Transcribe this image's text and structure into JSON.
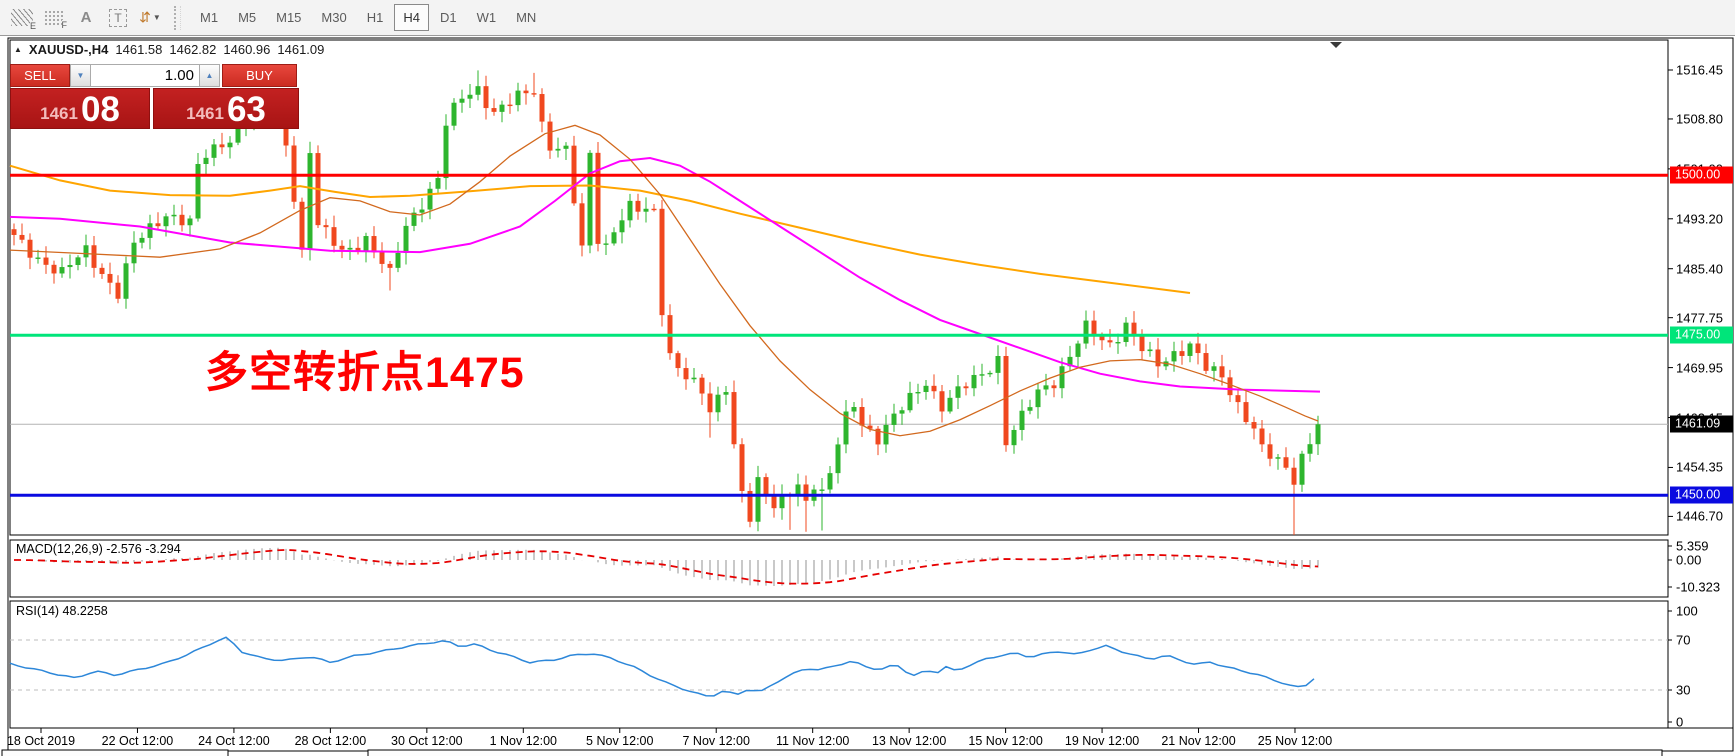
{
  "toolbar": {
    "icons": [
      {
        "name": "indicator-windows",
        "glyph": "E"
      },
      {
        "name": "grid-setup",
        "glyph": "F"
      },
      {
        "name": "font-tool",
        "glyph": "A"
      },
      {
        "name": "text-label-tool",
        "glyph": "T"
      },
      {
        "name": "arrange-objects",
        "glyph": "⇵"
      },
      {
        "name": "arrange-caret",
        "glyph": "▼"
      }
    ],
    "timeframes": [
      "M1",
      "M5",
      "M15",
      "M30",
      "H1",
      "H4",
      "D1",
      "W1",
      "MN"
    ],
    "active_timeframe": "H4"
  },
  "chart": {
    "header": {
      "collapse_icon": "▲",
      "symbol": "XAUUSD-,H4",
      "open": "1461.58",
      "high": "1462.82",
      "low": "1460.96",
      "close": "1461.09"
    },
    "annotation": {
      "text": "多空转折点1475",
      "color": "#ff0000"
    },
    "price_axis_ticks": [
      "1516.45",
      "1508.80",
      "1501.00",
      "1493.20",
      "1485.40",
      "1477.75",
      "1469.95",
      "1462.15",
      "1454.35",
      "1446.70"
    ],
    "hlines": [
      {
        "label": "1500.00",
        "price": 1500.0,
        "color": "#ff0000"
      },
      {
        "label": "1475.00",
        "price": 1475.0,
        "color": "#00e57a"
      },
      {
        "label": "1450.00",
        "price": 1450.0,
        "color": "#0a0ae0"
      }
    ],
    "current_price": {
      "label": "1461.09",
      "price": 1461.09,
      "line_color": "#b4b4b4",
      "badge_color": "#000000"
    },
    "date_axis": [
      "18 Oct 2019",
      "22 Oct 12:00",
      "24 Oct 12:00",
      "28 Oct 12:00",
      "30 Oct 12:00",
      "1 Nov 12:00",
      "5 Nov 12:00",
      "7 Nov 12:00",
      "11 Nov 12:00",
      "13 Nov 12:00",
      "15 Nov 12:00",
      "19 Nov 12:00",
      "21 Nov 12:00",
      "25 Nov 12:00"
    ]
  },
  "one_click": {
    "sell_label": "SELL",
    "buy_label": "BUY",
    "volume": "1.00",
    "sell_price_small": "1461",
    "sell_price_big": "08",
    "buy_price_small": "1461",
    "buy_price_big": "63",
    "spinner_down": "▼",
    "spinner_up": "▲"
  },
  "macd": {
    "label": "MACD(12,26,9) -2.576 -3.294",
    "axis": [
      "5.359",
      "0.00",
      "-10.323"
    ]
  },
  "rsi": {
    "label": "RSI(14) 48.2258",
    "axis": [
      "100",
      "70",
      "30",
      "0"
    ]
  },
  "chart_data": {
    "type": "candlestick",
    "symbol": "XAUUSD",
    "timeframe": "H4",
    "candle_count": 164,
    "price_range_visible": [
      1446.7,
      1516.45
    ],
    "close_waypoints": [
      [
        0,
        1490.2
      ],
      [
        3,
        1487.2
      ],
      [
        6,
        1484.6
      ],
      [
        9,
        1488.2
      ],
      [
        13,
        1481.6
      ],
      [
        15,
        1489
      ],
      [
        19,
        1494.2
      ],
      [
        22,
        1492.5
      ],
      [
        23,
        1501
      ],
      [
        24,
        1503
      ],
      [
        27,
        1506
      ],
      [
        29,
        1509
      ],
      [
        33,
        1511
      ],
      [
        34,
        1505
      ],
      [
        35,
        1497
      ],
      [
        36,
        1488
      ],
      [
        37,
        1504
      ],
      [
        38,
        1492
      ],
      [
        41,
        1488
      ],
      [
        44,
        1490.2
      ],
      [
        47,
        1484.2
      ],
      [
        49,
        1492
      ],
      [
        51,
        1496
      ],
      [
        53,
        1499.5
      ],
      [
        54,
        1508
      ],
      [
        56,
        1512
      ],
      [
        58,
        1513.6
      ],
      [
        60,
        1510
      ],
      [
        63,
        1512
      ],
      [
        65,
        1513.2
      ],
      [
        66,
        1508
      ],
      [
        67,
        1505
      ],
      [
        69,
        1504
      ],
      [
        70,
        1496
      ],
      [
        71,
        1488
      ],
      [
        72,
        1503
      ],
      [
        73,
        1490
      ],
      [
        74,
        1489
      ],
      [
        75,
        1492
      ],
      [
        77,
        1495.2
      ],
      [
        79,
        1494
      ],
      [
        80,
        1494
      ],
      [
        81,
        1479
      ],
      [
        82,
        1472
      ],
      [
        84,
        1469
      ],
      [
        86,
        1466
      ],
      [
        87,
        1462.5
      ],
      [
        89,
        1467
      ],
      [
        90,
        1458
      ],
      [
        91,
        1451
      ],
      [
        92,
        1446.9
      ],
      [
        93,
        1452
      ],
      [
        94,
        1450
      ],
      [
        95,
        1447.8
      ],
      [
        96,
        1449
      ],
      [
        97,
        1450.6
      ],
      [
        98,
        1452
      ],
      [
        99,
        1449.2
      ],
      [
        100,
        1452
      ],
      [
        101,
        1450.2
      ],
      [
        102,
        1453
      ],
      [
        103,
        1458
      ],
      [
        104,
        1462
      ],
      [
        105,
        1464.4
      ],
      [
        106,
        1461.5
      ],
      [
        108,
        1459
      ],
      [
        110,
        1462
      ],
      [
        112,
        1465
      ],
      [
        114,
        1468
      ],
      [
        116,
        1464
      ],
      [
        118,
        1466
      ],
      [
        121,
        1469
      ],
      [
        123,
        1471.5
      ],
      [
        124,
        1458.5
      ],
      [
        126,
        1462
      ],
      [
        128,
        1466
      ],
      [
        130,
        1468
      ],
      [
        132,
        1472
      ],
      [
        134,
        1476
      ],
      [
        136,
        1474
      ],
      [
        137,
        1473.5
      ],
      [
        139,
        1477
      ],
      [
        141,
        1473
      ],
      [
        143,
        1470
      ],
      [
        145,
        1472
      ],
      [
        147,
        1474
      ],
      [
        149,
        1470
      ],
      [
        151,
        1468
      ],
      [
        153,
        1464
      ],
      [
        155,
        1461
      ],
      [
        156,
        1457.5
      ],
      [
        158,
        1455
      ],
      [
        160,
        1452.2
      ],
      [
        161,
        1456
      ],
      [
        162,
        1458.8
      ],
      [
        163,
        1461.09
      ]
    ],
    "wick_overrides": {
      "47": {
        "low": 1482
      },
      "58": {
        "high": 1516.4
      },
      "65": {
        "high": 1516
      },
      "87": {
        "low": 1459
      },
      "92": {
        "low": 1445
      },
      "95": {
        "low": 1446.5
      },
      "97": {
        "low": 1444.6
      },
      "99": {
        "low": 1444.3
      },
      "101": {
        "low": 1444.5
      },
      "160": {
        "low": 1443.8
      }
    },
    "ma_orange": [
      [
        10,
        1501.5
      ],
      [
        60,
        1499.2
      ],
      [
        110,
        1497.6
      ],
      [
        170,
        1496.9
      ],
      [
        230,
        1496.8
      ],
      [
        270,
        1497.6
      ],
      [
        300,
        1498.3
      ],
      [
        335,
        1497.4
      ],
      [
        370,
        1496.6
      ],
      [
        410,
        1496.8
      ],
      [
        470,
        1497.5
      ],
      [
        530,
        1498.3
      ],
      [
        590,
        1498.4
      ],
      [
        640,
        1497.6
      ],
      [
        690,
        1496
      ],
      [
        740,
        1494
      ],
      [
        800,
        1491.8
      ],
      [
        860,
        1489.6
      ],
      [
        920,
        1487.6
      ],
      [
        980,
        1486
      ],
      [
        1040,
        1484.6
      ],
      [
        1100,
        1483.4
      ],
      [
        1150,
        1482.4
      ],
      [
        1190,
        1481.6
      ]
    ],
    "ma_magenta": [
      [
        10,
        1493.5
      ],
      [
        60,
        1493.2
      ],
      [
        140,
        1492
      ],
      [
        230,
        1489.5
      ],
      [
        330,
        1488.2
      ],
      [
        420,
        1488
      ],
      [
        470,
        1489.3
      ],
      [
        520,
        1492
      ],
      [
        555,
        1496
      ],
      [
        590,
        1500.3
      ],
      [
        620,
        1502.2
      ],
      [
        650,
        1502.7
      ],
      [
        680,
        1501.5
      ],
      [
        710,
        1499
      ],
      [
        740,
        1496
      ],
      [
        780,
        1492
      ],
      [
        820,
        1488
      ],
      [
        860,
        1484
      ],
      [
        900,
        1480.5
      ],
      [
        940,
        1477.4
      ],
      [
        980,
        1475.2
      ],
      [
        1020,
        1473
      ],
      [
        1060,
        1470.8
      ],
      [
        1100,
        1469
      ],
      [
        1140,
        1467.8
      ],
      [
        1180,
        1467
      ],
      [
        1240,
        1466.5
      ],
      [
        1320,
        1466.2
      ]
    ],
    "ma_fast": [
      [
        10,
        1488.3
      ],
      [
        80,
        1487.8
      ],
      [
        160,
        1487.2
      ],
      [
        220,
        1488.5
      ],
      [
        260,
        1491
      ],
      [
        300,
        1494.5
      ],
      [
        330,
        1496.5
      ],
      [
        360,
        1496
      ],
      [
        390,
        1494.3
      ],
      [
        420,
        1493.8
      ],
      [
        450,
        1495.5
      ],
      [
        480,
        1499
      ],
      [
        510,
        1503
      ],
      [
        545,
        1506.5
      ],
      [
        575,
        1507.8
      ],
      [
        600,
        1506.3
      ],
      [
        630,
        1502.5
      ],
      [
        660,
        1497
      ],
      [
        690,
        1490
      ],
      [
        720,
        1483
      ],
      [
        750,
        1476.5
      ],
      [
        780,
        1471
      ],
      [
        810,
        1466.5
      ],
      [
        840,
        1462.8
      ],
      [
        870,
        1460.3
      ],
      [
        900,
        1459.3
      ],
      [
        930,
        1460
      ],
      [
        960,
        1461.8
      ],
      [
        990,
        1464
      ],
      [
        1020,
        1466.3
      ],
      [
        1050,
        1468.3
      ],
      [
        1080,
        1470
      ],
      [
        1110,
        1471
      ],
      [
        1140,
        1471.2
      ],
      [
        1170,
        1470.5
      ],
      [
        1200,
        1469
      ],
      [
        1230,
        1467.3
      ],
      [
        1260,
        1465.5
      ],
      [
        1285,
        1463.8
      ],
      [
        1305,
        1462.4
      ],
      [
        1318,
        1461.6
      ]
    ],
    "macd_params": {
      "fast": 12,
      "slow": 26,
      "signal": 9
    },
    "macd_last_values": [
      -2.576,
      -3.294
    ],
    "macd_axis_range": [
      5.359,
      -10.323
    ],
    "rsi_period": 14,
    "rsi_last_value": 48.2258,
    "rsi_levels": [
      70,
      30
    ],
    "rsi_waypoints": [
      [
        10,
        50
      ],
      [
        45,
        44
      ],
      [
        75,
        39
      ],
      [
        95,
        45
      ],
      [
        115,
        42
      ],
      [
        140,
        47
      ],
      [
        165,
        52
      ],
      [
        190,
        60
      ],
      [
        216,
        70
      ],
      [
        228,
        73
      ],
      [
        240,
        62
      ],
      [
        262,
        56
      ],
      [
        285,
        54
      ],
      [
        310,
        57
      ],
      [
        330,
        52
      ],
      [
        355,
        57
      ],
      [
        380,
        60
      ],
      [
        400,
        63
      ],
      [
        422,
        66
      ],
      [
        445,
        68.5
      ],
      [
        460,
        64
      ],
      [
        475,
        66
      ],
      [
        492,
        61
      ],
      [
        510,
        57
      ],
      [
        530,
        52
      ],
      [
        552,
        54
      ],
      [
        572,
        58
      ],
      [
        592,
        60
      ],
      [
        612,
        56
      ],
      [
        632,
        50
      ],
      [
        652,
        42
      ],
      [
        668,
        36
      ],
      [
        682,
        32
      ],
      [
        696,
        28
      ],
      [
        710,
        25
      ],
      [
        724,
        30
      ],
      [
        736,
        26
      ],
      [
        748,
        31
      ],
      [
        760,
        28
      ],
      [
        776,
        36
      ],
      [
        792,
        42
      ],
      [
        806,
        47
      ],
      [
        820,
        45
      ],
      [
        836,
        49
      ],
      [
        852,
        52
      ],
      [
        866,
        48
      ],
      [
        880,
        45
      ],
      [
        896,
        50
      ],
      [
        906,
        44
      ],
      [
        916,
        40
      ],
      [
        926,
        46
      ],
      [
        936,
        43
      ],
      [
        946,
        48
      ],
      [
        956,
        45
      ],
      [
        970,
        50
      ],
      [
        986,
        55
      ],
      [
        1000,
        58
      ],
      [
        1016,
        60
      ],
      [
        1030,
        57
      ],
      [
        1046,
        60
      ],
      [
        1060,
        62
      ],
      [
        1076,
        59
      ],
      [
        1090,
        63
      ],
      [
        1106,
        66
      ],
      [
        1120,
        62
      ],
      [
        1136,
        58
      ],
      [
        1150,
        55
      ],
      [
        1166,
        58
      ],
      [
        1180,
        54
      ],
      [
        1196,
        50
      ],
      [
        1210,
        52
      ],
      [
        1226,
        48
      ],
      [
        1240,
        45
      ],
      [
        1256,
        42
      ],
      [
        1270,
        38
      ],
      [
        1286,
        34
      ],
      [
        1296,
        31
      ],
      [
        1306,
        33
      ],
      [
        1316,
        40
      ],
      [
        1320,
        43
      ]
    ],
    "colors": {
      "up": "#2eb52e",
      "down": "#f0481f",
      "ma_orange": "#ffa500",
      "ma_magenta": "#ff00ff",
      "ma_fast": "#d2691e",
      "macd_hist": "#c9c9c9",
      "macd_signal": "#e60000",
      "rsi": "#2d87d9",
      "levels": "#bdbdbd"
    }
  }
}
